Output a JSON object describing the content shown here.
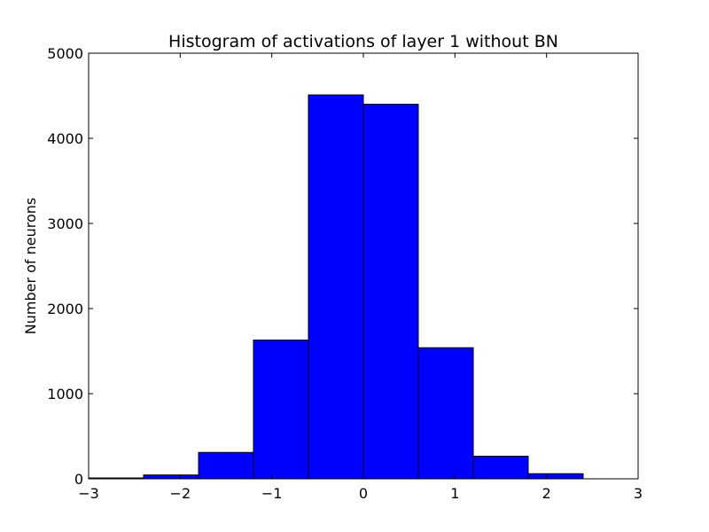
{
  "chart_data": {
    "type": "bar",
    "title": "Histogram of activations of layer 1  without BN",
    "xlabel": "",
    "ylabel": "Number of neurons",
    "xlim": [
      -3,
      3
    ],
    "ylim": [
      0,
      5000
    ],
    "x_ticks": [
      -3,
      -2,
      -1,
      0,
      1,
      2,
      3
    ],
    "x_tick_labels": [
      "−3",
      "−2",
      "−1",
      "0",
      "1",
      "2",
      "3"
    ],
    "y_ticks": [
      0,
      1000,
      2000,
      3000,
      4000,
      5000
    ],
    "y_tick_labels": [
      "0",
      "1000",
      "2000",
      "3000",
      "4000",
      "5000"
    ],
    "bin_edges": [
      -3.0,
      -2.4,
      -1.8,
      -1.2,
      -0.6,
      0.0,
      0.6,
      1.2,
      1.8,
      2.4,
      3.0
    ],
    "values": [
      10,
      45,
      310,
      1630,
      4510,
      4400,
      1540,
      265,
      60,
      0
    ],
    "bar_color": "#0000ff",
    "edge_color": "#000000",
    "grid": false,
    "legend": "none"
  }
}
